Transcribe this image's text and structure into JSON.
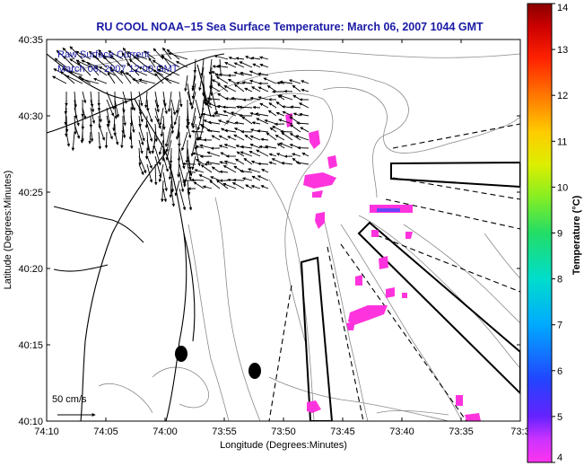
{
  "title": "RU COOL  NOAA−15  Sea Surface Temperature:  March 06, 2007 1044 GMT",
  "current_label": "Raw Surface Current",
  "current_time": "March 06, 2007 12:00 GMT",
  "scale_arrow_label": "50 cm/s",
  "x_axis": {
    "label": "Longitude (Degrees:Minutes)",
    "ticks": [
      "74:10",
      "74:05",
      "74:00",
      "73:55",
      "73:50",
      "73:45",
      "73:40",
      "73:35",
      "73:3"
    ]
  },
  "y_axis": {
    "label": "Latitude (Degrees:Minutes)",
    "ticks": [
      "40:35",
      "40:30",
      "40:25",
      "40:20",
      "40:15",
      "40:10"
    ]
  },
  "colorbar": {
    "label": "Temperature (°C)",
    "min": 4,
    "max": 14,
    "ticks": [
      "4",
      "5",
      "6",
      "7",
      "8",
      "9",
      "10",
      "11",
      "12",
      "13",
      "14"
    ]
  },
  "colors": {
    "title_text": "#1a1aa6",
    "sst_patch": "#ff33dd",
    "sst_patch_cold": "#6644ff",
    "coast": "#000000",
    "bathymetry": "#888888"
  }
}
